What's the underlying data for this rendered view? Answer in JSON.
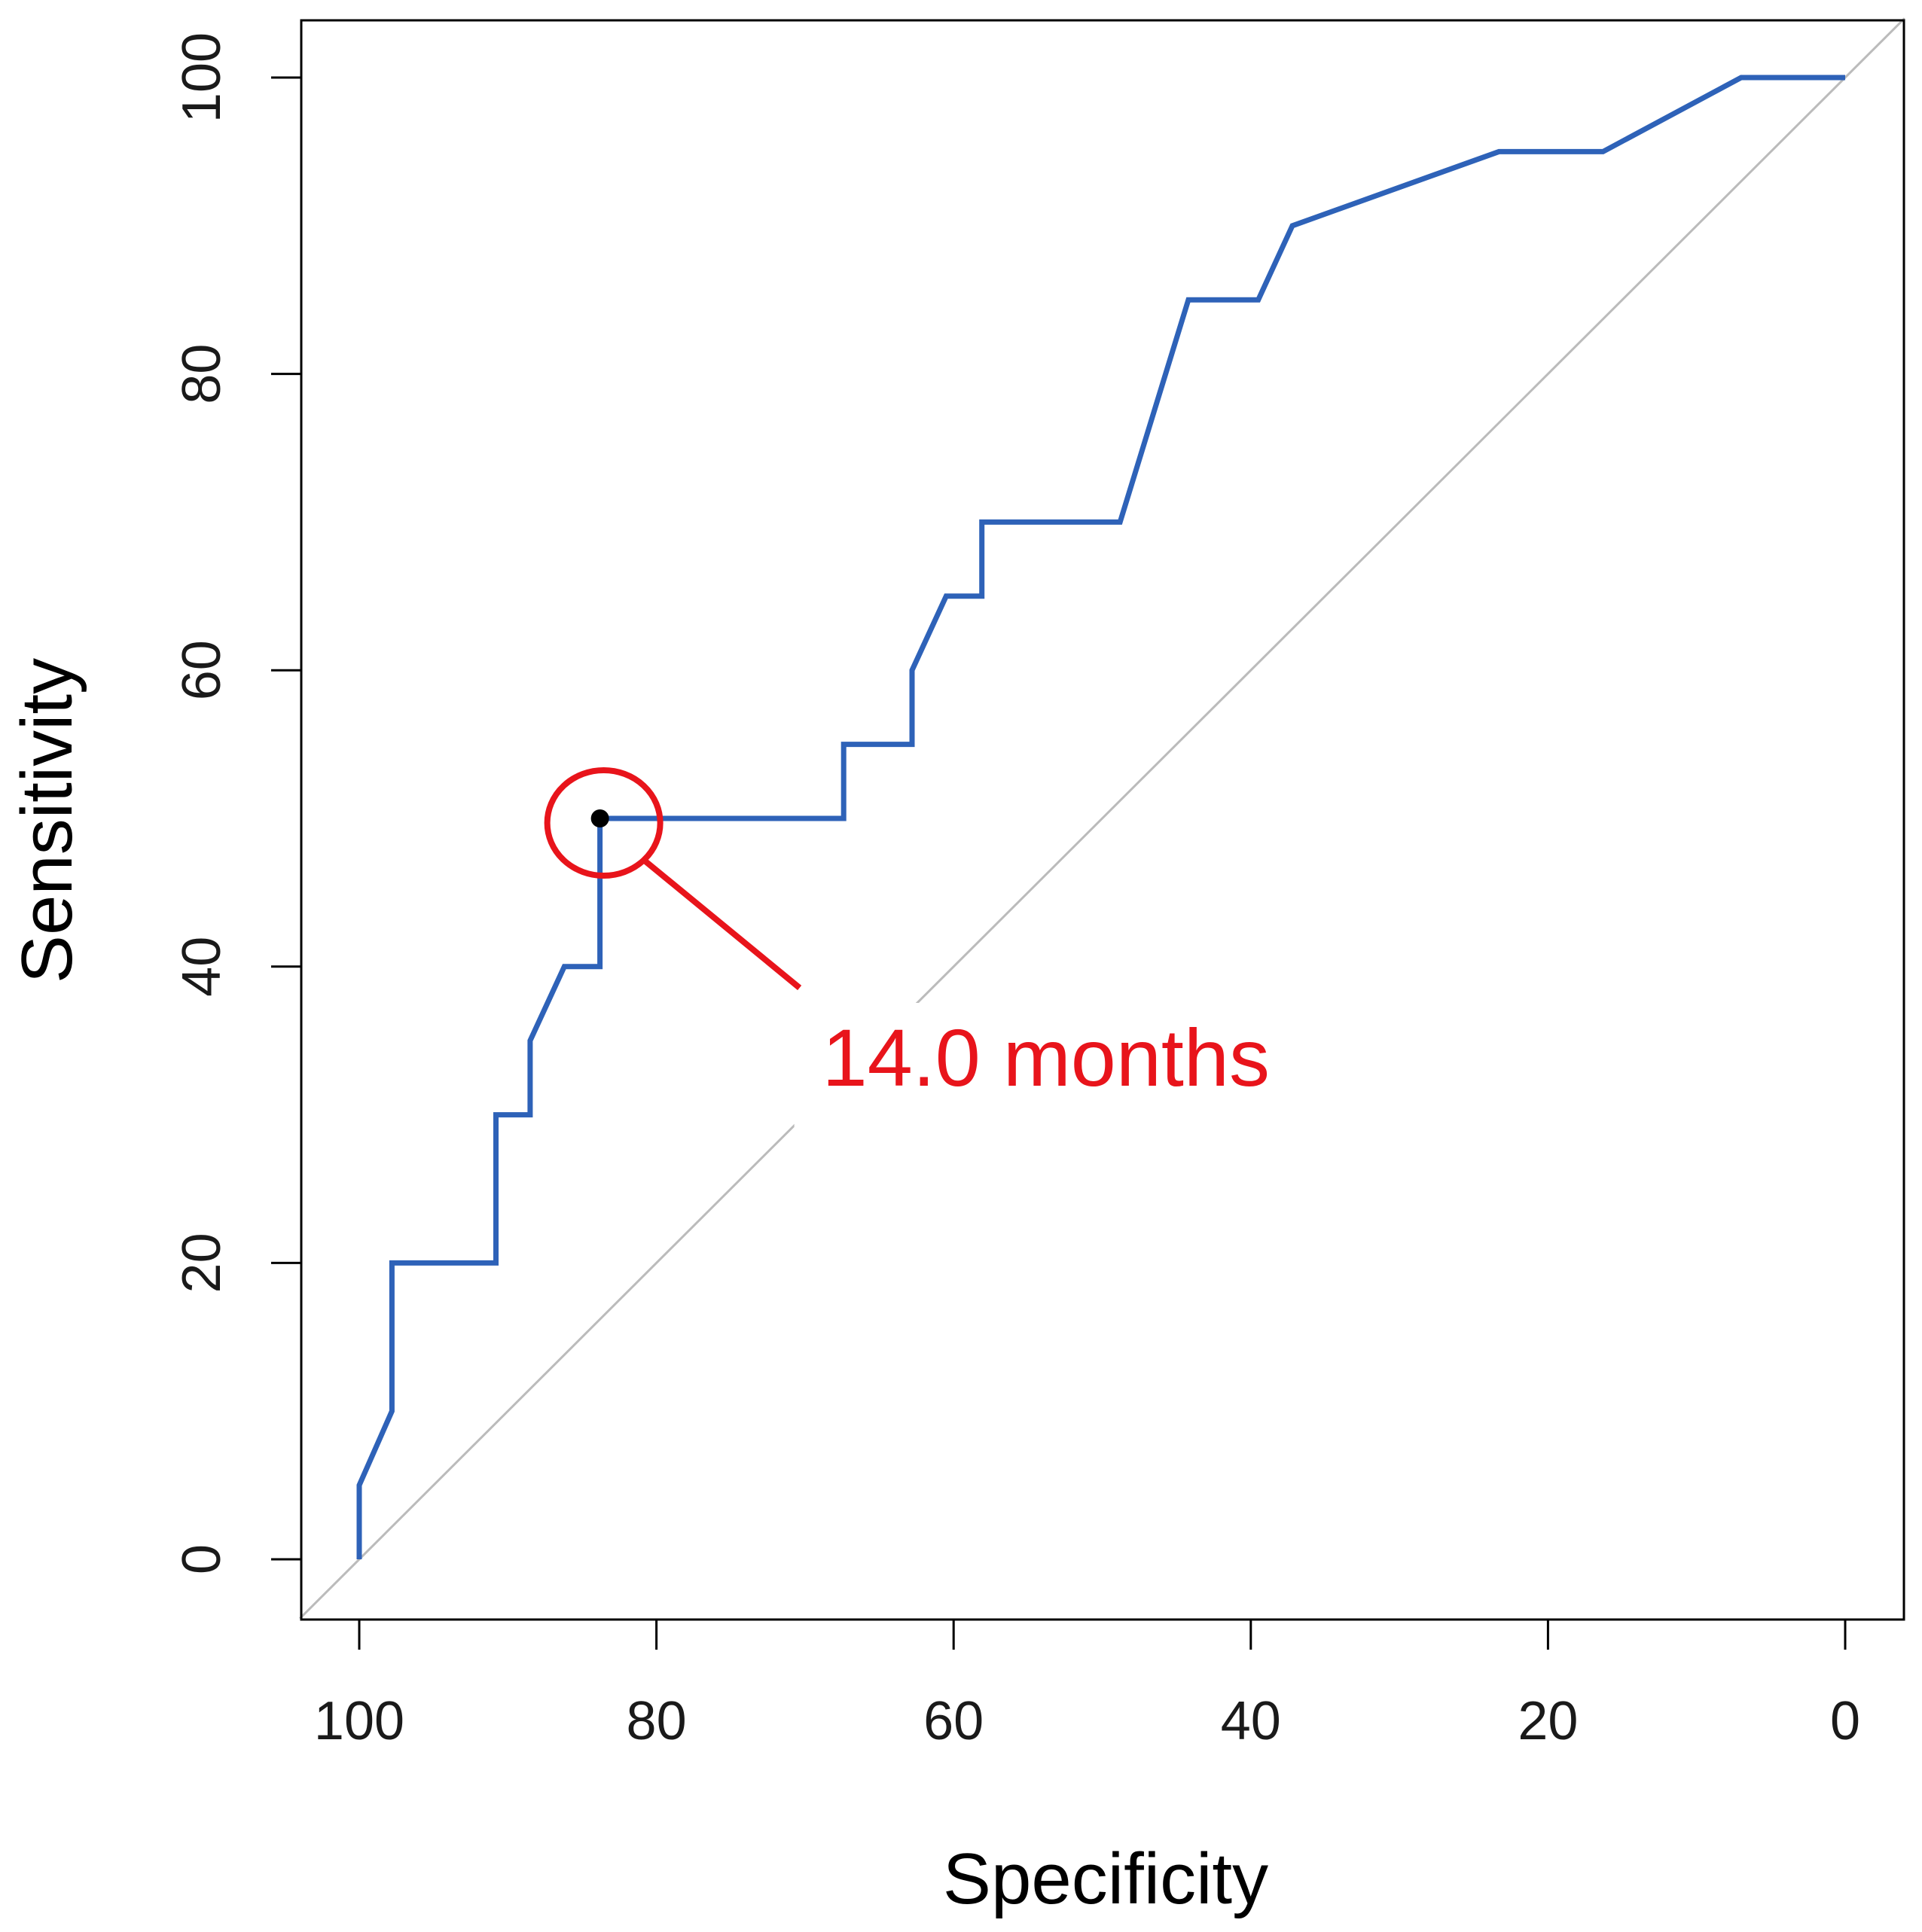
{
  "chart_data": {
    "type": "line",
    "title": "",
    "xlabel": "Specificity",
    "ylabel": "Sensitivity",
    "x_reversed": true,
    "xlim": [
      100,
      0
    ],
    "ylim": [
      0,
      100
    ],
    "xticks": [
      100,
      80,
      60,
      40,
      20,
      0
    ],
    "yticks": [
      0,
      20,
      40,
      60,
      80,
      100
    ],
    "grid": false,
    "series": [
      {
        "name": "ROC curve",
        "color": "#2e62b8",
        "points": [
          {
            "x": 100,
            "y": 0
          },
          {
            "x": 100,
            "y": 5
          },
          {
            "x": 97.8,
            "y": 10
          },
          {
            "x": 97.8,
            "y": 20
          },
          {
            "x": 90.8,
            "y": 20
          },
          {
            "x": 90.8,
            "y": 30
          },
          {
            "x": 88.5,
            "y": 30
          },
          {
            "x": 88.5,
            "y": 35
          },
          {
            "x": 86.2,
            "y": 40
          },
          {
            "x": 83.8,
            "y": 40
          },
          {
            "x": 83.8,
            "y": 50
          },
          {
            "x": 67.4,
            "y": 50
          },
          {
            "x": 67.4,
            "y": 55
          },
          {
            "x": 62.8,
            "y": 55
          },
          {
            "x": 62.8,
            "y": 60
          },
          {
            "x": 60.5,
            "y": 65
          },
          {
            "x": 58.1,
            "y": 65
          },
          {
            "x": 58.1,
            "y": 70
          },
          {
            "x": 48.8,
            "y": 70
          },
          {
            "x": 44.2,
            "y": 85
          },
          {
            "x": 39.5,
            "y": 85
          },
          {
            "x": 37.2,
            "y": 90
          },
          {
            "x": 23.3,
            "y": 95
          },
          {
            "x": 16.3,
            "y": 95
          },
          {
            "x": 7.0,
            "y": 100
          },
          {
            "x": 0,
            "y": 100
          }
        ]
      }
    ],
    "reference_line": {
      "name": "chance diagonal",
      "color": "#bbbbbb",
      "from": {
        "x": 100,
        "y": 0
      },
      "to": {
        "x": 0,
        "y": 100
      }
    },
    "highlight_point": {
      "x": 83.8,
      "y": 50,
      "color": "#000000"
    },
    "annotation": {
      "text": "14.0 months",
      "color": "#e8141b",
      "target": {
        "x": 83.8,
        "y": 50
      }
    }
  }
}
